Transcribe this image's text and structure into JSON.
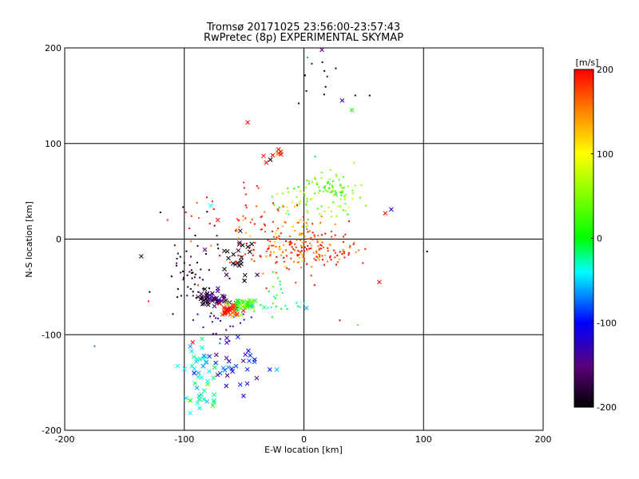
{
  "chart_data": {
    "type": "scatter",
    "title": "Tromsø 20171025 23:56:00-23:57:43",
    "subtitle": "RwPretec (8p) EXPERIMENTAL SKYMAP",
    "xlabel": "E-W location [km]",
    "ylabel": "N-S location [km]",
    "xlim": [
      -200,
      200
    ],
    "ylim": [
      -200,
      200
    ],
    "x_ticks": [
      "-200",
      "-100",
      "0",
      "100",
      "200"
    ],
    "y_ticks": [
      "200",
      "100",
      "0",
      "-100",
      "-200"
    ],
    "grid": true,
    "colorbar": {
      "label": "[m/s]",
      "range": [
        -200,
        200
      ],
      "ticks": [
        "200",
        "100",
        "0",
        "-100",
        "-200"
      ],
      "colormap": "rainbow (black-purple-blue-cyan-green-yellow-red)"
    },
    "marker_types": [
      "dot",
      "x"
    ],
    "clusters": [
      {
        "marker": "dot",
        "center": [
          -95,
          -40
        ],
        "spread": [
          10,
          25
        ],
        "count": 60,
        "velocity": -195
      },
      {
        "marker": "x",
        "center": [
          -76,
          -62
        ],
        "spread": [
          6,
          4
        ],
        "count": 45,
        "velocity": -170
      },
      {
        "marker": "x",
        "center": [
          -62,
          -75
        ],
        "spread": [
          6,
          4
        ],
        "count": 40,
        "velocity": 190
      },
      {
        "marker": "x",
        "center": [
          -50,
          -67
        ],
        "spread": [
          5,
          4
        ],
        "count": 30,
        "velocity": 10
      },
      {
        "marker": "dot",
        "center": [
          5,
          -10
        ],
        "spread": [
          22,
          12
        ],
        "count": 150,
        "velocity": 185
      },
      {
        "marker": "dot",
        "center": [
          15,
          45
        ],
        "spread": [
          18,
          15
        ],
        "count": 90,
        "velocity": 45
      },
      {
        "marker": "dot",
        "center": [
          25,
          52
        ],
        "spread": [
          6,
          4
        ],
        "count": 30,
        "velocity": 30
      },
      {
        "marker": "dot",
        "center": [
          -10,
          0
        ],
        "spread": [
          25,
          15
        ],
        "count": 80,
        "velocity": 140
      },
      {
        "marker": "x",
        "center": [
          -60,
          -20
        ],
        "spread": [
          12,
          12
        ],
        "count": 25,
        "velocity": -200
      },
      {
        "marker": "x",
        "center": [
          -85,
          -130
        ],
        "spread": [
          8,
          12
        ],
        "count": 30,
        "velocity": -40
      },
      {
        "marker": "x",
        "center": [
          -55,
          -130
        ],
        "spread": [
          12,
          15
        ],
        "count": 30,
        "velocity": -110
      },
      {
        "marker": "x",
        "center": [
          -85,
          -165
        ],
        "spread": [
          8,
          8
        ],
        "count": 15,
        "velocity": -20
      },
      {
        "marker": "dot",
        "center": [
          -50,
          10
        ],
        "spread": [
          25,
          25
        ],
        "count": 50,
        "velocity": 190
      },
      {
        "marker": "dot",
        "center": [
          -70,
          -90
        ],
        "spread": [
          10,
          10
        ],
        "count": 20,
        "velocity": -120
      },
      {
        "marker": "dot",
        "center": [
          10,
          170
        ],
        "spread": [
          15,
          20
        ],
        "count": 12,
        "velocity": -190
      },
      {
        "marker": "x",
        "center": [
          -25,
          90
        ],
        "spread": [
          6,
          6
        ],
        "count": 8,
        "velocity": 200
      },
      {
        "marker": "dot",
        "center": [
          -20,
          -60
        ],
        "spread": [
          12,
          15
        ],
        "count": 25,
        "velocity": -10
      }
    ],
    "points": [
      {
        "x": -136,
        "y": -18,
        "v": -200,
        "m": "x"
      },
      {
        "x": -175,
        "y": -112,
        "v": -70,
        "m": "dot"
      },
      {
        "x": -130,
        "y": -65,
        "v": 190,
        "m": "dot"
      },
      {
        "x": 103,
        "y": -13,
        "v": -200,
        "m": "dot"
      },
      {
        "x": 73,
        "y": 31,
        "v": -120,
        "m": "x"
      },
      {
        "x": 68,
        "y": 27,
        "v": 200,
        "m": "x"
      },
      {
        "x": 63,
        "y": -45,
        "v": 200,
        "m": "x"
      },
      {
        "x": 32,
        "y": 145,
        "v": -120,
        "m": "x"
      },
      {
        "x": 40,
        "y": 135,
        "v": 10,
        "m": "x"
      },
      {
        "x": -47,
        "y": 122,
        "v": 200,
        "m": "x"
      },
      {
        "x": -28,
        "y": 83,
        "v": -200,
        "m": "x"
      },
      {
        "x": -78,
        "y": 35,
        "v": -40,
        "m": "x"
      },
      {
        "x": -72,
        "y": 20,
        "v": 200,
        "m": "x"
      },
      {
        "x": -93,
        "y": -108,
        "v": 200,
        "m": "x"
      },
      {
        "x": -95,
        "y": -182,
        "v": -40,
        "m": "x"
      },
      {
        "x": 45,
        "y": -90,
        "v": 20,
        "m": "dot"
      },
      {
        "x": 15,
        "y": 198,
        "v": -150,
        "m": "x"
      },
      {
        "x": 3,
        "y": 190,
        "v": -60,
        "m": "dot"
      },
      {
        "x": -120,
        "y": 28,
        "v": -200,
        "m": "dot"
      },
      {
        "x": 2,
        "y": -72,
        "v": -60,
        "m": "x"
      },
      {
        "x": 30,
        "y": -85,
        "v": 200,
        "m": "dot"
      }
    ]
  }
}
